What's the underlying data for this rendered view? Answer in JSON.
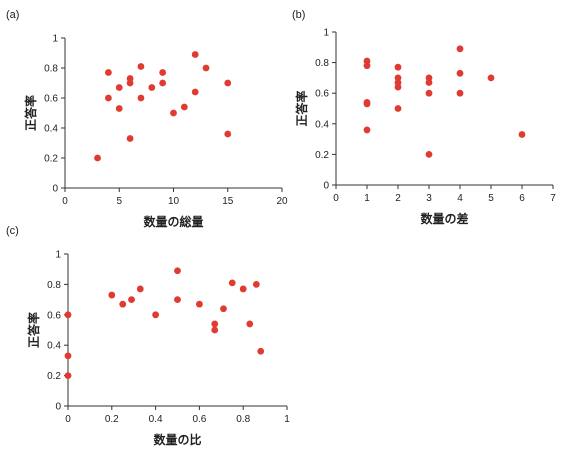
{
  "chart_data": [
    {
      "type": "scatter",
      "panel_label": "(a)",
      "xlabel": "数量の総量",
      "ylabel": "正答率",
      "xlim": [
        0,
        20
      ],
      "ylim": [
        0,
        1
      ],
      "x_ticks": [
        "0",
        "5",
        "10",
        "15",
        "20"
      ],
      "y_ticks": [
        "0",
        "0.2",
        "0.4",
        "0.6",
        "0.8",
        "1"
      ],
      "point_color": "#e03b32",
      "points": [
        {
          "x": 3,
          "y": 0.2
        },
        {
          "x": 4,
          "y": 0.6
        },
        {
          "x": 4,
          "y": 0.77
        },
        {
          "x": 5,
          "y": 0.53
        },
        {
          "x": 5,
          "y": 0.67
        },
        {
          "x": 6,
          "y": 0.33
        },
        {
          "x": 6,
          "y": 0.7
        },
        {
          "x": 6,
          "y": 0.73
        },
        {
          "x": 7,
          "y": 0.6
        },
        {
          "x": 7,
          "y": 0.81
        },
        {
          "x": 8,
          "y": 0.67
        },
        {
          "x": 9,
          "y": 0.7
        },
        {
          "x": 9,
          "y": 0.77
        },
        {
          "x": 10,
          "y": 0.5
        },
        {
          "x": 11,
          "y": 0.54
        },
        {
          "x": 12,
          "y": 0.64
        },
        {
          "x": 12,
          "y": 0.89
        },
        {
          "x": 13,
          "y": 0.8
        },
        {
          "x": 15,
          "y": 0.7
        },
        {
          "x": 15,
          "y": 0.36
        }
      ]
    },
    {
      "type": "scatter",
      "panel_label": "(b)",
      "xlabel": "数量の差",
      "ylabel": "正答率",
      "xlim": [
        0,
        7
      ],
      "ylim": [
        0,
        1
      ],
      "x_ticks": [
        "0",
        "1",
        "2",
        "3",
        "4",
        "5",
        "6",
        "7"
      ],
      "y_ticks": [
        "0",
        "0.2",
        "0.4",
        "0.6",
        "0.8",
        "1"
      ],
      "point_color": "#e03b32",
      "points": [
        {
          "x": 1,
          "y": 0.81
        },
        {
          "x": 1,
          "y": 0.78
        },
        {
          "x": 1,
          "y": 0.54
        },
        {
          "x": 1,
          "y": 0.53
        },
        {
          "x": 1,
          "y": 0.36
        },
        {
          "x": 2,
          "y": 0.77
        },
        {
          "x": 2,
          "y": 0.7
        },
        {
          "x": 2,
          "y": 0.67
        },
        {
          "x": 2,
          "y": 0.64
        },
        {
          "x": 2,
          "y": 0.5
        },
        {
          "x": 3,
          "y": 0.7
        },
        {
          "x": 3,
          "y": 0.67
        },
        {
          "x": 3,
          "y": 0.6
        },
        {
          "x": 3,
          "y": 0.2
        },
        {
          "x": 4,
          "y": 0.89
        },
        {
          "x": 4,
          "y": 0.73
        },
        {
          "x": 4,
          "y": 0.6
        },
        {
          "x": 5,
          "y": 0.7
        },
        {
          "x": 6,
          "y": 0.33
        }
      ]
    },
    {
      "type": "scatter",
      "panel_label": "(c)",
      "xlabel": "数量の比",
      "ylabel": "正答率",
      "xlim": [
        0,
        1
      ],
      "ylim": [
        0,
        1
      ],
      "x_ticks": [
        "0",
        "0.2",
        "0.4",
        "0.6",
        "0.8",
        "1"
      ],
      "y_ticks": [
        "0",
        "0.2",
        "0.4",
        "0.6",
        "0.8",
        "1"
      ],
      "point_color": "#e03b32",
      "points": [
        {
          "x": 0,
          "y": 0.6
        },
        {
          "x": 0,
          "y": 0.33
        },
        {
          "x": 0,
          "y": 0.2
        },
        {
          "x": 0.2,
          "y": 0.73
        },
        {
          "x": 0.25,
          "y": 0.67
        },
        {
          "x": 0.29,
          "y": 0.7
        },
        {
          "x": 0.33,
          "y": 0.77
        },
        {
          "x": 0.4,
          "y": 0.6
        },
        {
          "x": 0.5,
          "y": 0.89
        },
        {
          "x": 0.5,
          "y": 0.7
        },
        {
          "x": 0.6,
          "y": 0.67
        },
        {
          "x": 0.67,
          "y": 0.54
        },
        {
          "x": 0.67,
          "y": 0.5
        },
        {
          "x": 0.71,
          "y": 0.64
        },
        {
          "x": 0.75,
          "y": 0.81
        },
        {
          "x": 0.8,
          "y": 0.77
        },
        {
          "x": 0.83,
          "y": 0.54
        },
        {
          "x": 0.86,
          "y": 0.8
        },
        {
          "x": 0.88,
          "y": 0.36
        }
      ]
    }
  ]
}
